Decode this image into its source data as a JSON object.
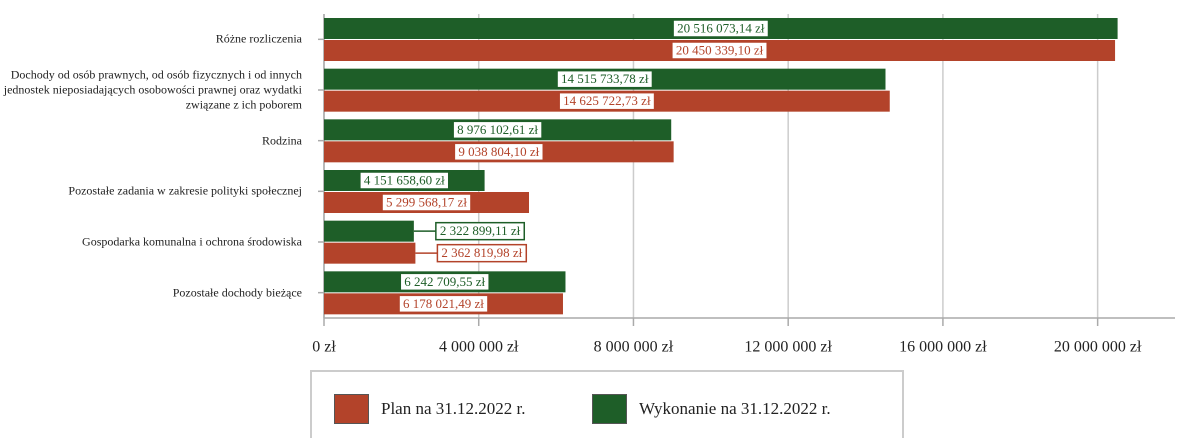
{
  "chart_data": {
    "type": "bar",
    "orientation": "horizontal",
    "categories": [
      "Różne rozliczenia",
      "Dochody od osób prawnych, od osób fizycznych i od innych jednostek nieposiadających osobowości prawnej oraz wydatki związane z ich poborem",
      "Rodzina",
      "Pozostałe zadania w zakresie polityki społecznej",
      "Gospodarka komunalna i ochrona środowiska",
      "Pozostałe dochody bieżące"
    ],
    "series": [
      {
        "name": "Wykonanie na 31.12.2022 r.",
        "color": "#1e5e28",
        "values": [
          20516073.14,
          14515733.78,
          8976102.61,
          4151658.6,
          2322899.11,
          6242709.55
        ],
        "value_labels": [
          "20 516 073,14 zł",
          "14 515 733,78 zł",
          "8 976 102,61 zł",
          "4 151 658,60 zł",
          "2 322 899,11 zł",
          "6 242 709,55 zł"
        ]
      },
      {
        "name": "Plan na 31.12.2022 r.",
        "color": "#b3432a",
        "values": [
          20450339.1,
          14625722.73,
          9038804.1,
          5299568.17,
          2362819.98,
          6178021.49
        ],
        "value_labels": [
          "20 450 339,10 zł",
          "14 625 722,73 zł",
          "9 038 804,10 zł",
          "5 299 568,17 zł",
          "2 362 819,98 zł",
          "6 178 021,49 zł"
        ]
      }
    ],
    "xlim": [
      0,
      22000000
    ],
    "xticks": [
      {
        "value": 0,
        "label": "0 zł"
      },
      {
        "value": 4000000,
        "label": "4 000 000 zł"
      },
      {
        "value": 8000000,
        "label": "8 000 000 zł"
      },
      {
        "value": 12000000,
        "label": "12 000 000 zł"
      },
      {
        "value": 16000000,
        "label": "16 000 000 zł"
      },
      {
        "value": 20000000,
        "label": "20 000 000 zł"
      }
    ],
    "grid": true,
    "legend_order": [
      1,
      0
    ]
  }
}
